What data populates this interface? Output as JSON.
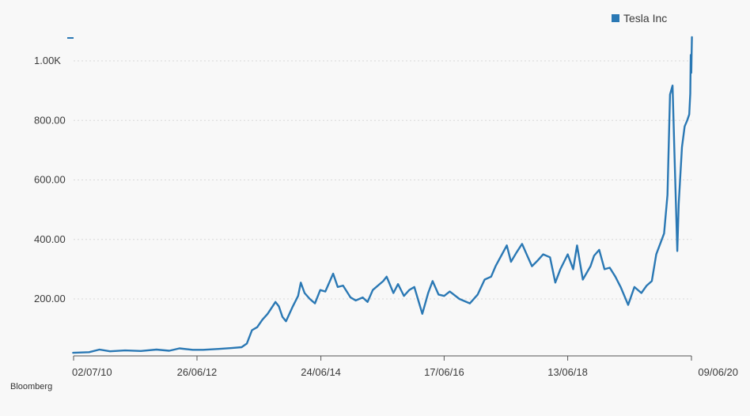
{
  "chart_data": {
    "type": "line",
    "title": "",
    "xlabel": "",
    "ylabel": "",
    "source": "Bloomberg",
    "grid": true,
    "legend_position": "top-right",
    "ylim": [
      0,
      1080
    ],
    "y_ticks": [
      {
        "value": 200,
        "label": "200.00"
      },
      {
        "value": 400,
        "label": "400.00"
      },
      {
        "value": 600,
        "label": "600.00"
      },
      {
        "value": 800,
        "label": "800.00"
      },
      {
        "value": 1000,
        "label": "1.00K"
      }
    ],
    "x_ticks": [
      {
        "date": "2010-07-02",
        "label": "02/07/10"
      },
      {
        "date": "2012-06-26",
        "label": "26/06/12"
      },
      {
        "date": "2014-06-24",
        "label": "24/06/14"
      },
      {
        "date": "2016-06-17",
        "label": "17/06/16"
      },
      {
        "date": "2018-06-13",
        "label": "13/06/18"
      },
      {
        "date": "2020-06-09",
        "label": "09/06/20"
      }
    ],
    "series": [
      {
        "name": "Tesla Inc",
        "color": "#2a78b4",
        "points": [
          [
            "2010-06-29",
            19
          ],
          [
            "2010-08-15",
            20
          ],
          [
            "2010-10-01",
            21
          ],
          [
            "2010-12-01",
            30
          ],
          [
            "2011-02-01",
            24
          ],
          [
            "2011-05-01",
            27
          ],
          [
            "2011-08-01",
            25
          ],
          [
            "2011-11-01",
            30
          ],
          [
            "2012-01-15",
            26
          ],
          [
            "2012-03-15",
            34
          ],
          [
            "2012-06-01",
            29
          ],
          [
            "2012-08-01",
            29
          ],
          [
            "2012-11-01",
            32
          ],
          [
            "2013-01-15",
            35
          ],
          [
            "2013-03-15",
            38
          ],
          [
            "2013-04-15",
            50
          ],
          [
            "2013-05-15",
            95
          ],
          [
            "2013-06-15",
            105
          ],
          [
            "2013-07-15",
            130
          ],
          [
            "2013-08-15",
            150
          ],
          [
            "2013-09-30",
            190
          ],
          [
            "2013-10-20",
            175
          ],
          [
            "2013-11-10",
            140
          ],
          [
            "2013-12-01",
            125
          ],
          [
            "2014-01-10",
            175
          ],
          [
            "2014-02-10",
            210
          ],
          [
            "2014-02-26",
            255
          ],
          [
            "2014-03-20",
            220
          ],
          [
            "2014-04-20",
            200
          ],
          [
            "2014-05-20",
            185
          ],
          [
            "2014-06-20",
            230
          ],
          [
            "2014-07-20",
            225
          ],
          [
            "2014-09-04",
            285
          ],
          [
            "2014-10-01",
            240
          ],
          [
            "2014-11-01",
            245
          ],
          [
            "2014-12-15",
            205
          ],
          [
            "2015-01-15",
            195
          ],
          [
            "2015-02-25",
            205
          ],
          [
            "2015-03-25",
            190
          ],
          [
            "2015-04-25",
            230
          ],
          [
            "2015-06-25",
            260
          ],
          [
            "2015-07-15",
            275
          ],
          [
            "2015-08-24",
            220
          ],
          [
            "2015-09-20",
            250
          ],
          [
            "2015-10-25",
            210
          ],
          [
            "2015-11-25",
            230
          ],
          [
            "2015-12-25",
            240
          ],
          [
            "2016-02-10",
            150
          ],
          [
            "2016-03-15",
            220
          ],
          [
            "2016-04-10",
            260
          ],
          [
            "2016-05-15",
            215
          ],
          [
            "2016-06-17",
            210
          ],
          [
            "2016-07-20",
            225
          ],
          [
            "2016-09-15",
            200
          ],
          [
            "2016-11-15",
            185
          ],
          [
            "2016-12-31",
            215
          ],
          [
            "2017-02-10",
            265
          ],
          [
            "2017-03-20",
            275
          ],
          [
            "2017-04-15",
            310
          ],
          [
            "2017-06-20",
            380
          ],
          [
            "2017-07-15",
            325
          ],
          [
            "2017-08-15",
            355
          ],
          [
            "2017-09-18",
            385
          ],
          [
            "2017-10-15",
            350
          ],
          [
            "2017-11-15",
            310
          ],
          [
            "2017-12-20",
            330
          ],
          [
            "2018-01-20",
            350
          ],
          [
            "2018-03-01",
            340
          ],
          [
            "2018-04-01",
            255
          ],
          [
            "2018-05-01",
            300
          ],
          [
            "2018-06-13",
            350
          ],
          [
            "2018-07-15",
            300
          ],
          [
            "2018-08-07",
            380
          ],
          [
            "2018-09-10",
            265
          ],
          [
            "2018-10-25",
            310
          ],
          [
            "2018-11-15",
            345
          ],
          [
            "2018-12-15",
            365
          ],
          [
            "2019-01-15",
            300
          ],
          [
            "2019-02-15",
            305
          ],
          [
            "2019-03-20",
            275
          ],
          [
            "2019-04-20",
            240
          ],
          [
            "2019-06-03",
            180
          ],
          [
            "2019-07-10",
            240
          ],
          [
            "2019-08-20",
            220
          ],
          [
            "2019-09-20",
            245
          ],
          [
            "2019-10-20",
            260
          ],
          [
            "2019-11-15",
            350
          ],
          [
            "2019-12-31",
            420
          ],
          [
            "2020-01-20",
            550
          ],
          [
            "2020-02-04",
            887
          ],
          [
            "2020-02-19",
            917
          ],
          [
            "2020-03-01",
            690
          ],
          [
            "2020-03-18",
            361
          ],
          [
            "2020-03-26",
            520
          ],
          [
            "2020-04-14",
            710
          ],
          [
            "2020-04-30",
            780
          ],
          [
            "2020-05-15",
            800
          ],
          [
            "2020-05-27",
            820
          ],
          [
            "2020-06-02",
            890
          ],
          [
            "2020-06-05",
            1020
          ],
          [
            "2020-06-08",
            960
          ],
          [
            "2020-06-10",
            1025
          ],
          [
            "2020-06-12",
            1080
          ]
        ]
      }
    ]
  }
}
